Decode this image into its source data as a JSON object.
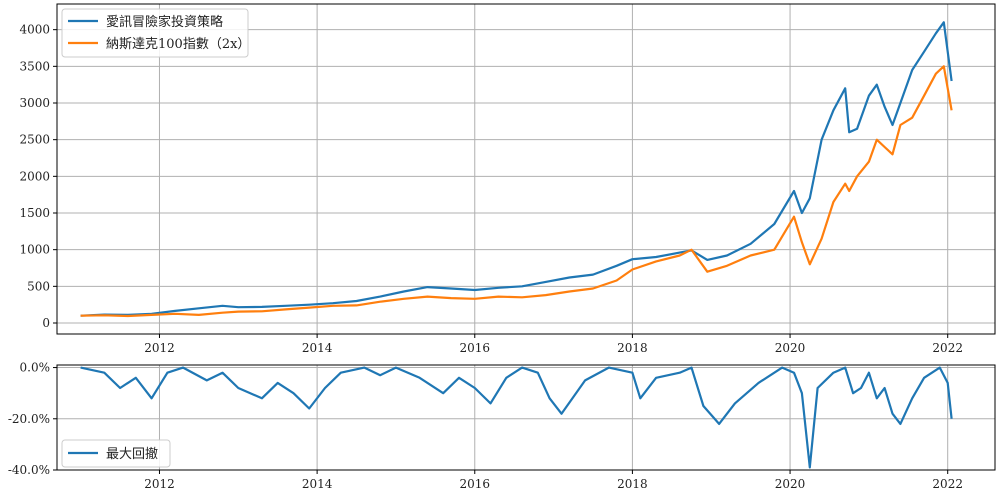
{
  "chart_data": [
    {
      "type": "line",
      "title": "",
      "xlabel": "",
      "ylabel": "",
      "xlim": [
        2010.7,
        2022.6
      ],
      "ylim": [
        -150,
        4350
      ],
      "x_ticks": [
        2012,
        2014,
        2016,
        2018,
        2020,
        2022
      ],
      "x_tick_labels": [
        "2012",
        "2014",
        "2016",
        "2018",
        "2020",
        "2022"
      ],
      "y_ticks": [
        0,
        500,
        1000,
        1500,
        2000,
        2500,
        3000,
        3500,
        4000
      ],
      "y_tick_labels": [
        "0",
        "500",
        "1000",
        "1500",
        "2000",
        "2500",
        "3000",
        "3500",
        "4000"
      ],
      "grid": true,
      "legend_position": "top-left",
      "series": [
        {
          "name": "愛訊冒險家投資策略",
          "color": "#1f77b4",
          "x": [
            2011.0,
            2011.3,
            2011.6,
            2011.9,
            2012.2,
            2012.5,
            2012.8,
            2013.0,
            2013.3,
            2013.6,
            2013.9,
            2014.2,
            2014.5,
            2014.8,
            2015.1,
            2015.4,
            2015.7,
            2016.0,
            2016.3,
            2016.6,
            2016.9,
            2017.2,
            2017.5,
            2017.8,
            2018.0,
            2018.3,
            2018.6,
            2018.75,
            2018.95,
            2019.2,
            2019.5,
            2019.8,
            2020.05,
            2020.15,
            2020.25,
            2020.4,
            2020.55,
            2020.7,
            2020.75,
            2020.85,
            2021.0,
            2021.1,
            2021.2,
            2021.3,
            2021.4,
            2021.55,
            2021.7,
            2021.85,
            2021.95,
            2022.05
          ],
          "y": [
            100,
            115,
            110,
            125,
            165,
            200,
            235,
            215,
            220,
            235,
            250,
            270,
            300,
            360,
            430,
            490,
            470,
            450,
            480,
            500,
            560,
            620,
            660,
            780,
            870,
            900,
            960,
            990,
            860,
            920,
            1080,
            1350,
            1800,
            1500,
            1700,
            2500,
            2900,
            3200,
            2600,
            2650,
            3100,
            3250,
            2950,
            2700,
            3000,
            3450,
            3700,
            3950,
            4100,
            3300
          ]
        },
        {
          "name": "納斯達克100指數（2x）",
          "color": "#ff7f0e",
          "x": [
            2011.0,
            2011.3,
            2011.6,
            2011.9,
            2012.2,
            2012.5,
            2012.8,
            2013.0,
            2013.3,
            2013.6,
            2013.9,
            2014.2,
            2014.5,
            2014.8,
            2015.1,
            2015.4,
            2015.7,
            2016.0,
            2016.3,
            2016.6,
            2016.9,
            2017.2,
            2017.5,
            2017.8,
            2018.0,
            2018.3,
            2018.6,
            2018.75,
            2018.95,
            2019.2,
            2019.5,
            2019.8,
            2020.05,
            2020.15,
            2020.25,
            2020.4,
            2020.55,
            2020.7,
            2020.75,
            2020.85,
            2021.0,
            2021.1,
            2021.2,
            2021.3,
            2021.4,
            2021.55,
            2021.7,
            2021.85,
            2021.95,
            2022.05
          ],
          "y": [
            100,
            105,
            95,
            110,
            125,
            110,
            140,
            155,
            160,
            185,
            210,
            235,
            240,
            290,
            330,
            360,
            340,
            330,
            360,
            350,
            380,
            430,
            470,
            580,
            730,
            840,
            920,
            1000,
            700,
            780,
            920,
            1000,
            1450,
            1100,
            800,
            1150,
            1650,
            1900,
            1800,
            2000,
            2200,
            2500,
            2400,
            2300,
            2700,
            2800,
            3100,
            3400,
            3500,
            2900
          ]
        }
      ]
    },
    {
      "type": "area",
      "title": "",
      "xlabel": "",
      "ylabel": "",
      "xlim": [
        2010.7,
        2022.6
      ],
      "ylim": [
        -0.4,
        0.01
      ],
      "x_ticks": [
        2012,
        2014,
        2016,
        2018,
        2020,
        2022
      ],
      "x_tick_labels": [
        "2012",
        "2014",
        "2016",
        "2018",
        "2020",
        "2022"
      ],
      "y_ticks": [
        0.0,
        -0.2,
        -0.4
      ],
      "y_tick_labels": [
        "0.0%",
        "-20.0%",
        "-40.0%"
      ],
      "grid": true,
      "legend_position": "bottom-left",
      "series": [
        {
          "name": "最大回撤",
          "color": "#1f77b4",
          "x": [
            2011.0,
            2011.3,
            2011.5,
            2011.7,
            2011.9,
            2012.1,
            2012.3,
            2012.6,
            2012.8,
            2013.0,
            2013.3,
            2013.5,
            2013.7,
            2013.9,
            2014.1,
            2014.3,
            2014.6,
            2014.8,
            2015.0,
            2015.3,
            2015.6,
            2015.8,
            2016.0,
            2016.2,
            2016.4,
            2016.6,
            2016.8,
            2016.95,
            2017.1,
            2017.4,
            2017.7,
            2018.0,
            2018.1,
            2018.3,
            2018.6,
            2018.75,
            2018.9,
            2019.1,
            2019.3,
            2019.6,
            2019.9,
            2020.05,
            2020.15,
            2020.25,
            2020.35,
            2020.55,
            2020.7,
            2020.8,
            2020.9,
            2021.0,
            2021.1,
            2021.2,
            2021.3,
            2021.4,
            2021.55,
            2021.7,
            2021.9,
            2022.0,
            2022.05
          ],
          "y": [
            0,
            -0.02,
            -0.08,
            -0.04,
            -0.12,
            -0.02,
            0,
            -0.05,
            -0.02,
            -0.08,
            -0.12,
            -0.06,
            -0.1,
            -0.16,
            -0.08,
            -0.02,
            0,
            -0.03,
            0,
            -0.04,
            -0.1,
            -0.04,
            -0.08,
            -0.14,
            -0.04,
            0,
            -0.02,
            -0.12,
            -0.18,
            -0.05,
            0,
            -0.02,
            -0.12,
            -0.04,
            -0.02,
            0,
            -0.15,
            -0.22,
            -0.14,
            -0.06,
            0,
            -0.02,
            -0.1,
            -0.39,
            -0.08,
            -0.02,
            0,
            -0.1,
            -0.08,
            -0.02,
            -0.12,
            -0.08,
            -0.18,
            -0.22,
            -0.12,
            -0.04,
            0,
            -0.06,
            -0.2
          ]
        }
      ]
    }
  ]
}
